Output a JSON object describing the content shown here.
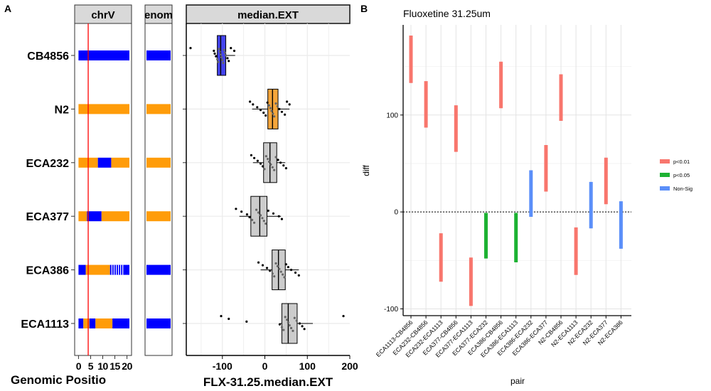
{
  "panels": {
    "a": "A",
    "b": "B"
  },
  "chart_data": [
    {
      "type": "genotype_tracks",
      "facet_labels": [
        "chrV",
        "enom",
        "median.EXT"
      ],
      "strains": [
        "CB4856",
        "N2",
        "ECA232",
        "ECA377",
        "ECA386",
        "ECA1113"
      ],
      "xlabel": "Genomic Positio",
      "xticks": [
        0,
        5,
        10,
        15,
        20
      ],
      "xtick_labels": [
        "0",
        "5",
        "10",
        "15",
        "20"
      ],
      "xlim": [
        -1,
        21
      ],
      "marker_position_mb": 4,
      "colors": {
        "cb4856_allele": "#0000ff",
        "n2_allele": "#ff9c09",
        "marker": "#ff0000"
      },
      "segments": {
        "CB4856": [
          [
            0,
            21,
            "cb4856_allele"
          ]
        ],
        "N2": [
          [
            0,
            21,
            "n2_allele"
          ]
        ],
        "ECA232": [
          [
            0,
            8,
            "n2_allele"
          ],
          [
            8,
            13.5,
            "cb4856_allele"
          ],
          [
            13.5,
            21,
            "n2_allele"
          ]
        ],
        "ECA377": [
          [
            0,
            3.5,
            "n2_allele"
          ],
          [
            3.5,
            9.5,
            "cb4856_allele"
          ],
          [
            9.5,
            21,
            "n2_allele"
          ]
        ],
        "ECA386": [
          [
            0,
            3,
            "cb4856_allele"
          ],
          [
            3,
            13,
            "n2_allele"
          ],
          [
            13,
            21,
            "cb4856_allele"
          ]
        ],
        "ECA1113": [
          [
            0,
            2,
            "cb4856_allele"
          ],
          [
            2,
            4.5,
            "n2_allele"
          ],
          [
            4.5,
            7,
            "cb4856_allele"
          ],
          [
            7,
            14,
            "n2_allele"
          ],
          [
            14,
            21,
            "cb4856_allele"
          ]
        ]
      },
      "genome_track": {
        "CB4856": "cb4856_allele",
        "N2": "n2_allele",
        "ECA232": "n2_allele",
        "ECA377": "n2_allele",
        "ECA386": "cb4856_allele",
        "ECA1113": "cb4856_allele"
      }
    },
    {
      "type": "boxplot",
      "orientation": "horizontal",
      "facet_label": "median.EXT",
      "xlabel": "FLX-31.25.median.EXT",
      "xlim": [
        -185,
        200
      ],
      "xticks": [
        -100,
        0,
        100,
        200
      ],
      "xtick_labels": [
        "-100",
        "0",
        "100",
        "200"
      ],
      "categories": [
        "CB4856",
        "N2",
        "ECA232",
        "ECA377",
        "ECA386",
        "ECA1113"
      ],
      "box_colors": {
        "CB4856": "#4444ee",
        "N2": "#f5a53a",
        "ECA232": "#cccccc",
        "ECA377": "#cccccc",
        "ECA386": "#cccccc",
        "ECA1113": "#cccccc"
      },
      "boxes": {
        "CB4856": {
          "q1": -112,
          "median": -104,
          "q3": -92,
          "lo": -117,
          "hi": -70
        },
        "N2": {
          "q1": 7,
          "median": 18,
          "q3": 31,
          "lo": -30,
          "hi": 58
        },
        "ECA232": {
          "q1": -3,
          "median": 12,
          "q3": 28,
          "lo": -28,
          "hi": 48
        },
        "ECA377": {
          "q1": -33,
          "median": -12,
          "q3": 5,
          "lo": -60,
          "hi": 38
        },
        "ECA386": {
          "q1": 17,
          "median": 32,
          "q3": 48,
          "lo": -10,
          "hi": 80
        },
        "ECA1113": {
          "q1": 40,
          "median": 55,
          "q3": 76,
          "lo": 35,
          "hi": 113
        }
      },
      "points": {
        "CB4856": [
          -175,
          -120,
          -118,
          -115,
          -112,
          -110,
          -108,
          -106,
          -104,
          -102,
          -100,
          -98,
          -96,
          -94,
          -92,
          -88,
          -85,
          -80,
          -72
        ],
        "N2": [
          -35,
          -28,
          -18,
          -10,
          -3,
          2,
          6,
          10,
          13,
          16,
          19,
          22,
          26,
          30,
          34,
          40,
          47,
          52,
          58
        ],
        "ECA232": [
          -32,
          -25,
          -17,
          -10,
          -5,
          -1,
          3,
          7,
          10,
          14,
          18,
          22,
          26,
          31,
          37,
          44,
          50
        ],
        "ECA377": [
          -68,
          -55,
          -42,
          -36,
          -30,
          -25,
          -20,
          -15,
          -10,
          -6,
          -2,
          2,
          8,
          20,
          33,
          40
        ],
        "ECA386": [
          -15,
          -5,
          5,
          12,
          18,
          22,
          26,
          30,
          34,
          38,
          42,
          46,
          50,
          55,
          62,
          72,
          80
        ],
        "ECA1113": [
          -103,
          -85,
          -43,
          35,
          40,
          44,
          48,
          52,
          55,
          58,
          62,
          66,
          70,
          75,
          82,
          88,
          93,
          185
        ]
      }
    },
    {
      "type": "range",
      "title": "Fluoxetine 31.25um",
      "xlabel": "pair",
      "ylabel": "diff",
      "ylim": [
        -107,
        193
      ],
      "yticks": [
        -100,
        0,
        100
      ],
      "ytick_labels": [
        "-100",
        "0",
        "100"
      ],
      "reference_line": 0,
      "legend_position": "right",
      "legend": [
        {
          "label": "p<0.01",
          "color": "#f8766d"
        },
        {
          "label": "p<0.05",
          "color": "#1db233"
        },
        {
          "label": "Non-Sig",
          "color": "#5b8ff9"
        }
      ],
      "color_map": {
        "p<0.01": "#f8766d",
        "p<0.05": "#1db233",
        "Non-Sig": "#5b8ff9"
      },
      "categories": [
        "ECA1113-CB4856",
        "ECA232-CB4856",
        "ECA232-ECA1113",
        "ECA377-CB4856",
        "ECA377-ECA1113",
        "ECA377-ECA232",
        "ECA386-CB4856",
        "ECA386-ECA1113",
        "ECA386-ECA232",
        "ECA386-ECA377",
        "N2-CB4856",
        "N2-ECA1113",
        "N2-ECA232",
        "N2-ECA377",
        "N2-ECA386"
      ],
      "lower": [
        133,
        87,
        -72,
        62,
        -97,
        -48,
        107,
        -52,
        -5,
        21,
        94,
        -65,
        -17,
        8,
        -38
      ],
      "estimate": [
        158,
        111,
        -46,
        86,
        -71,
        -24,
        131,
        -26,
        19,
        45,
        118,
        -41,
        7,
        32,
        -13
      ],
      "upper": [
        182,
        135,
        -22,
        110,
        -47,
        -1,
        155,
        -1,
        43,
        69,
        142,
        -16,
        31,
        56,
        11
      ],
      "significance": [
        "p<0.01",
        "p<0.01",
        "p<0.01",
        "p<0.01",
        "p<0.01",
        "p<0.05",
        "p<0.01",
        "p<0.05",
        "Non-Sig",
        "p<0.01",
        "p<0.01",
        "p<0.01",
        "Non-Sig",
        "p<0.01",
        "Non-Sig"
      ]
    }
  ]
}
